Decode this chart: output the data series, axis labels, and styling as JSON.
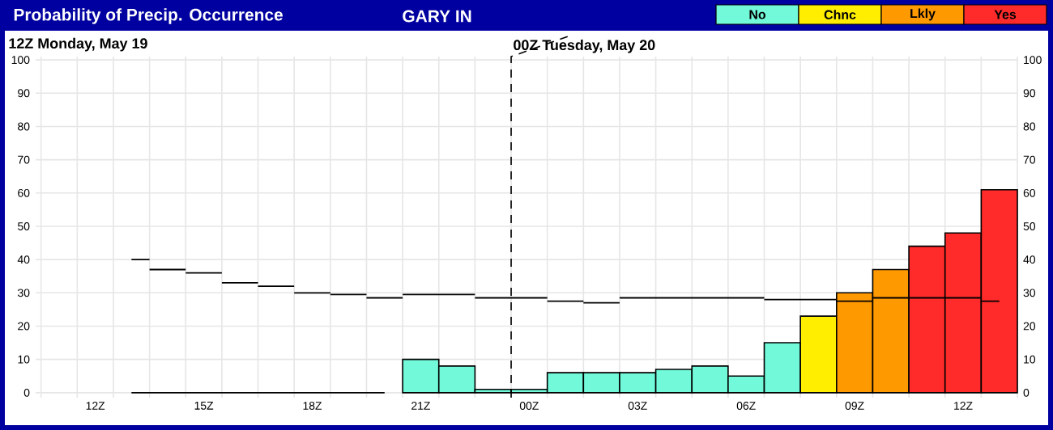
{
  "chart_data": {
    "type": "bar",
    "title": "Probability of Precip. Occurrence",
    "subtitle": "GARY IN",
    "annotations": [
      "12Z Monday, May 19"
    ],
    "categories": [
      "12Z",
      null,
      null,
      "15Z",
      null,
      null,
      "18Z",
      null,
      null,
      "21Z",
      null,
      null,
      "00Z",
      null,
      null,
      "03Z",
      null,
      null,
      "06Z",
      null,
      null,
      "09Z",
      null,
      null,
      "12Z",
      null
    ],
    "ylim": [
      -1.5,
      101
    ],
    "yticks": [
      0,
      10,
      20,
      30,
      40,
      50,
      60,
      70,
      80,
      90,
      100
    ],
    "y2lim": [
      -1.5,
      101
    ],
    "y2ticks": [
      0,
      10,
      20,
      30,
      40,
      50,
      60,
      70,
      80,
      90,
      100
    ],
    "grid": true,
    "legend": "top right",
    "ref_lines": [
      {
        "axis": "x",
        "value": "00Z",
        "label": "00Z Tuesday, May 20",
        "line_style": "dashed",
        "color": "#000000"
      }
    ],
    "series": [
      {
        "type": "step",
        "color": "#000000",
        "values": [
          null,
          0,
          0,
          0,
          0,
          0,
          0,
          0,
          0,
          null,
          null,
          null,
          null,
          null,
          null,
          null,
          null,
          null,
          null,
          null,
          null,
          null,
          null,
          null,
          null,
          null
        ]
      },
      {
        "name": "No",
        "color": "#72f9d9",
        "values": [
          null,
          null,
          null,
          null,
          null,
          null,
          null,
          null,
          null,
          10,
          8,
          1,
          1,
          6,
          6,
          6,
          7,
          8,
          5,
          15,
          null,
          null,
          null,
          null,
          null,
          null
        ]
      },
      {
        "name": "Chnc",
        "color": "#ffee00",
        "values": [
          null,
          null,
          null,
          null,
          null,
          null,
          null,
          null,
          null,
          null,
          null,
          null,
          null,
          null,
          null,
          null,
          null,
          null,
          null,
          null,
          23,
          null,
          null,
          null,
          null,
          null
        ]
      },
      {
        "name": "Lkly",
        "color": "#ff9900",
        "values": [
          null,
          null,
          null,
          null,
          null,
          null,
          null,
          null,
          null,
          null,
          null,
          null,
          null,
          null,
          null,
          null,
          null,
          null,
          null,
          null,
          null,
          30,
          37,
          null,
          null,
          null
        ]
      },
      {
        "name": "Yes",
        "color": "#ff2a2a",
        "values": [
          null,
          null,
          null,
          null,
          null,
          null,
          null,
          null,
          null,
          null,
          null,
          null,
          null,
          null,
          null,
          null,
          null,
          null,
          null,
          null,
          null,
          null,
          null,
          44,
          48,
          61
        ]
      },
      {
        "type": "step",
        "color": "#000000",
        "values": [
          null,
          40,
          37,
          36,
          33,
          32,
          30,
          29.5,
          28.5,
          29.5,
          29.5,
          28.5,
          28.5,
          27.5,
          27,
          28.5,
          28.5,
          28.5,
          28.5,
          28,
          28,
          27.5,
          28.5,
          28.5,
          28.5,
          27.5
        ]
      }
    ]
  }
}
